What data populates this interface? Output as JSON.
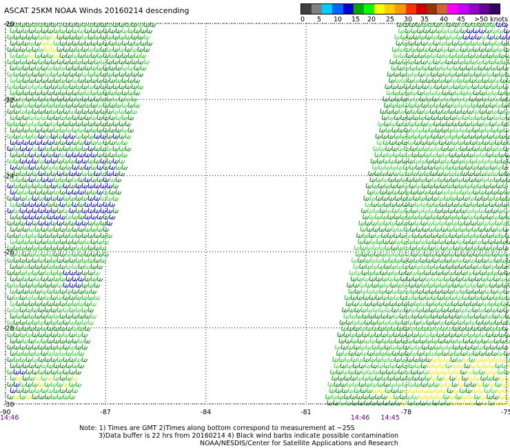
{
  "title": "ASCAT 25KM NOAA Winds 20160214 descending",
  "legend": {
    "colors": [
      "#404040",
      "#808080",
      "#00ccff",
      "#0066ff",
      "#0000cc",
      "#00aa00",
      "#00ff00",
      "#ffff00",
      "#ffcc00",
      "#ff9900",
      "#ff3300",
      "#cc0000",
      "#993300",
      "#cc6633",
      "#ff00ff",
      "#cc00ff",
      "#9900cc",
      "#660099",
      "#330066"
    ],
    "ticks": [
      "0",
      "5",
      "10",
      "15",
      "20",
      "25",
      "30",
      "35",
      "40",
      "45",
      ">50 knots"
    ]
  },
  "map": {
    "lat_labels": [
      "-20",
      "-22",
      "-24",
      "-26",
      "-28",
      "-30"
    ],
    "lon_labels": [
      "-90",
      "-87",
      "-84",
      "-81",
      "-78",
      "-75"
    ],
    "lat_range": [
      -30,
      -20
    ],
    "lon_range": [
      -90,
      -75
    ],
    "time_labels": [
      {
        "text": "14:46",
        "lon": -90
      },
      {
        "text": "14:46",
        "lon": -79.5
      },
      {
        "text": "14:45",
        "lon": -78.6
      }
    ],
    "time_color": "#660099",
    "barb_colors": {
      "blue": "#0000cc",
      "dark_green": "#008800",
      "green": "#00cc00",
      "light_green": "#33dd33",
      "yellow": "#eeee00"
    }
  },
  "notes": {
    "line1": "Note: 1) Times are GMT 2)Times along bottom correspond to measurement at ~25S",
    "line2": "3)Data buffer is 22 hrs from 20160214 4) Black wind barbs indicate possible contamination",
    "line3": "NOAA/NESDIS/Center for Satellite Applications and Research"
  }
}
